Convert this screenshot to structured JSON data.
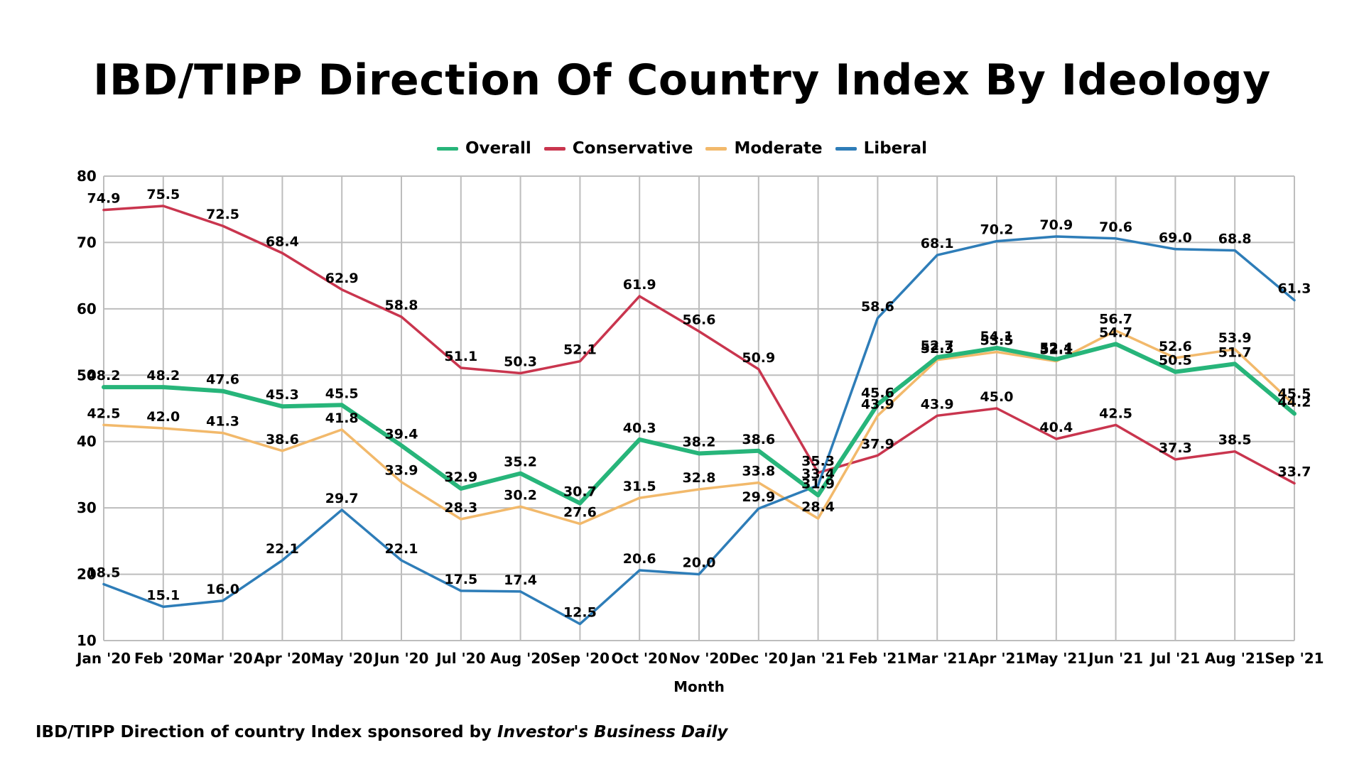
{
  "footnote": {
    "text": "IBD/TIPP Direction of country Index sponsored by ",
    "emphasis": "Investor's Business Daily"
  },
  "chart_data": {
    "type": "line",
    "title": "IBD/TIPP Direction Of Country Index By Ideology",
    "xlabel": "Month",
    "ylabel": "",
    "ylim": [
      10,
      80
    ],
    "yticks": [
      10,
      20,
      30,
      40,
      50,
      60,
      70,
      80
    ],
    "grid": true,
    "legend_position": "top-center",
    "categories": [
      "Jan '20",
      "Feb '20",
      "Mar '20",
      "Apr '20",
      "May '20",
      "Jun '20",
      "Jul '20",
      "Aug '20",
      "Sep '20",
      "Oct '20",
      "Nov '20",
      "Dec '20",
      "Jan '21",
      "Feb '21",
      "Mar '21",
      "Apr '21",
      "May '21",
      "Jun '21",
      "Jul '21",
      "Aug '21",
      "Sep '21"
    ],
    "series": [
      {
        "name": "Overall",
        "color": "#27b57a",
        "values": [
          48.2,
          48.2,
          47.6,
          45.3,
          45.5,
          39.4,
          32.9,
          35.2,
          30.7,
          40.3,
          38.2,
          38.6,
          31.9,
          45.6,
          52.7,
          54.1,
          52.4,
          54.7,
          50.5,
          51.7,
          44.2
        ]
      },
      {
        "name": "Conservative",
        "color": "#c9354e",
        "values": [
          74.9,
          75.5,
          72.5,
          68.4,
          62.9,
          58.8,
          51.1,
          50.3,
          52.1,
          61.9,
          56.6,
          50.9,
          35.3,
          37.9,
          43.9,
          45.0,
          40.4,
          42.5,
          37.3,
          38.5,
          33.7
        ]
      },
      {
        "name": "Moderate",
        "color": "#f2b96b",
        "values": [
          42.5,
          42.0,
          41.3,
          38.6,
          41.8,
          33.9,
          28.3,
          30.2,
          27.6,
          31.5,
          32.8,
          33.8,
          28.4,
          43.9,
          52.3,
          53.5,
          52.1,
          56.7,
          52.6,
          53.9,
          45.5
        ]
      },
      {
        "name": "Liberal",
        "color": "#2e7db8",
        "values": [
          18.5,
          15.1,
          16.0,
          22.1,
          29.7,
          22.1,
          17.5,
          17.4,
          12.5,
          20.6,
          20.0,
          29.9,
          33.4,
          58.6,
          68.1,
          70.2,
          70.9,
          70.6,
          69.0,
          68.8,
          61.3
        ]
      }
    ]
  }
}
